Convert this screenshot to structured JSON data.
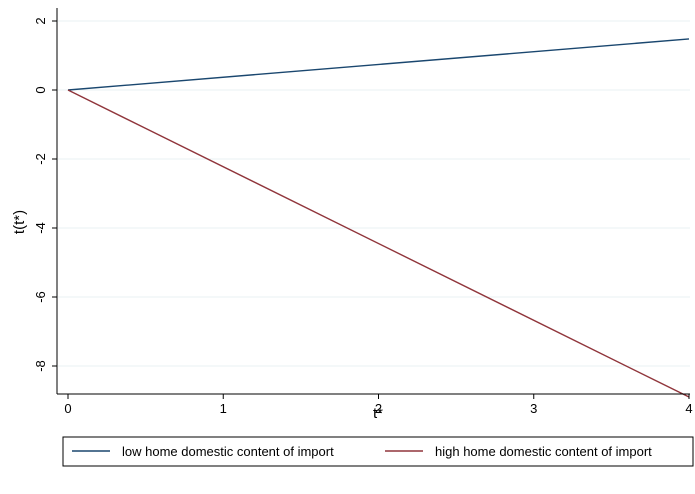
{
  "chart_data": {
    "type": "line",
    "title": "",
    "xlabel": "t*",
    "ylabel": "t(t*)",
    "xlim": [
      0,
      4
    ],
    "ylim": [
      -9,
      2
    ],
    "xticks": [
      0,
      1,
      2,
      3,
      4
    ],
    "yticks": [
      2,
      0,
      -2,
      -4,
      -6,
      -8
    ],
    "grid": true,
    "legend_position": "bottom",
    "series": [
      {
        "name": "low home domestic content of import",
        "color": "#1a476f",
        "x": [
          0,
          4
        ],
        "y": [
          0,
          1.48
        ]
      },
      {
        "name": "high home domestic content of import",
        "color": "#90353b",
        "x": [
          0,
          4
        ],
        "y": [
          0,
          -8.9
        ]
      }
    ]
  },
  "colors": {
    "grid": "#eaf2f3",
    "axis": "#000000",
    "background": "#ffffff"
  }
}
